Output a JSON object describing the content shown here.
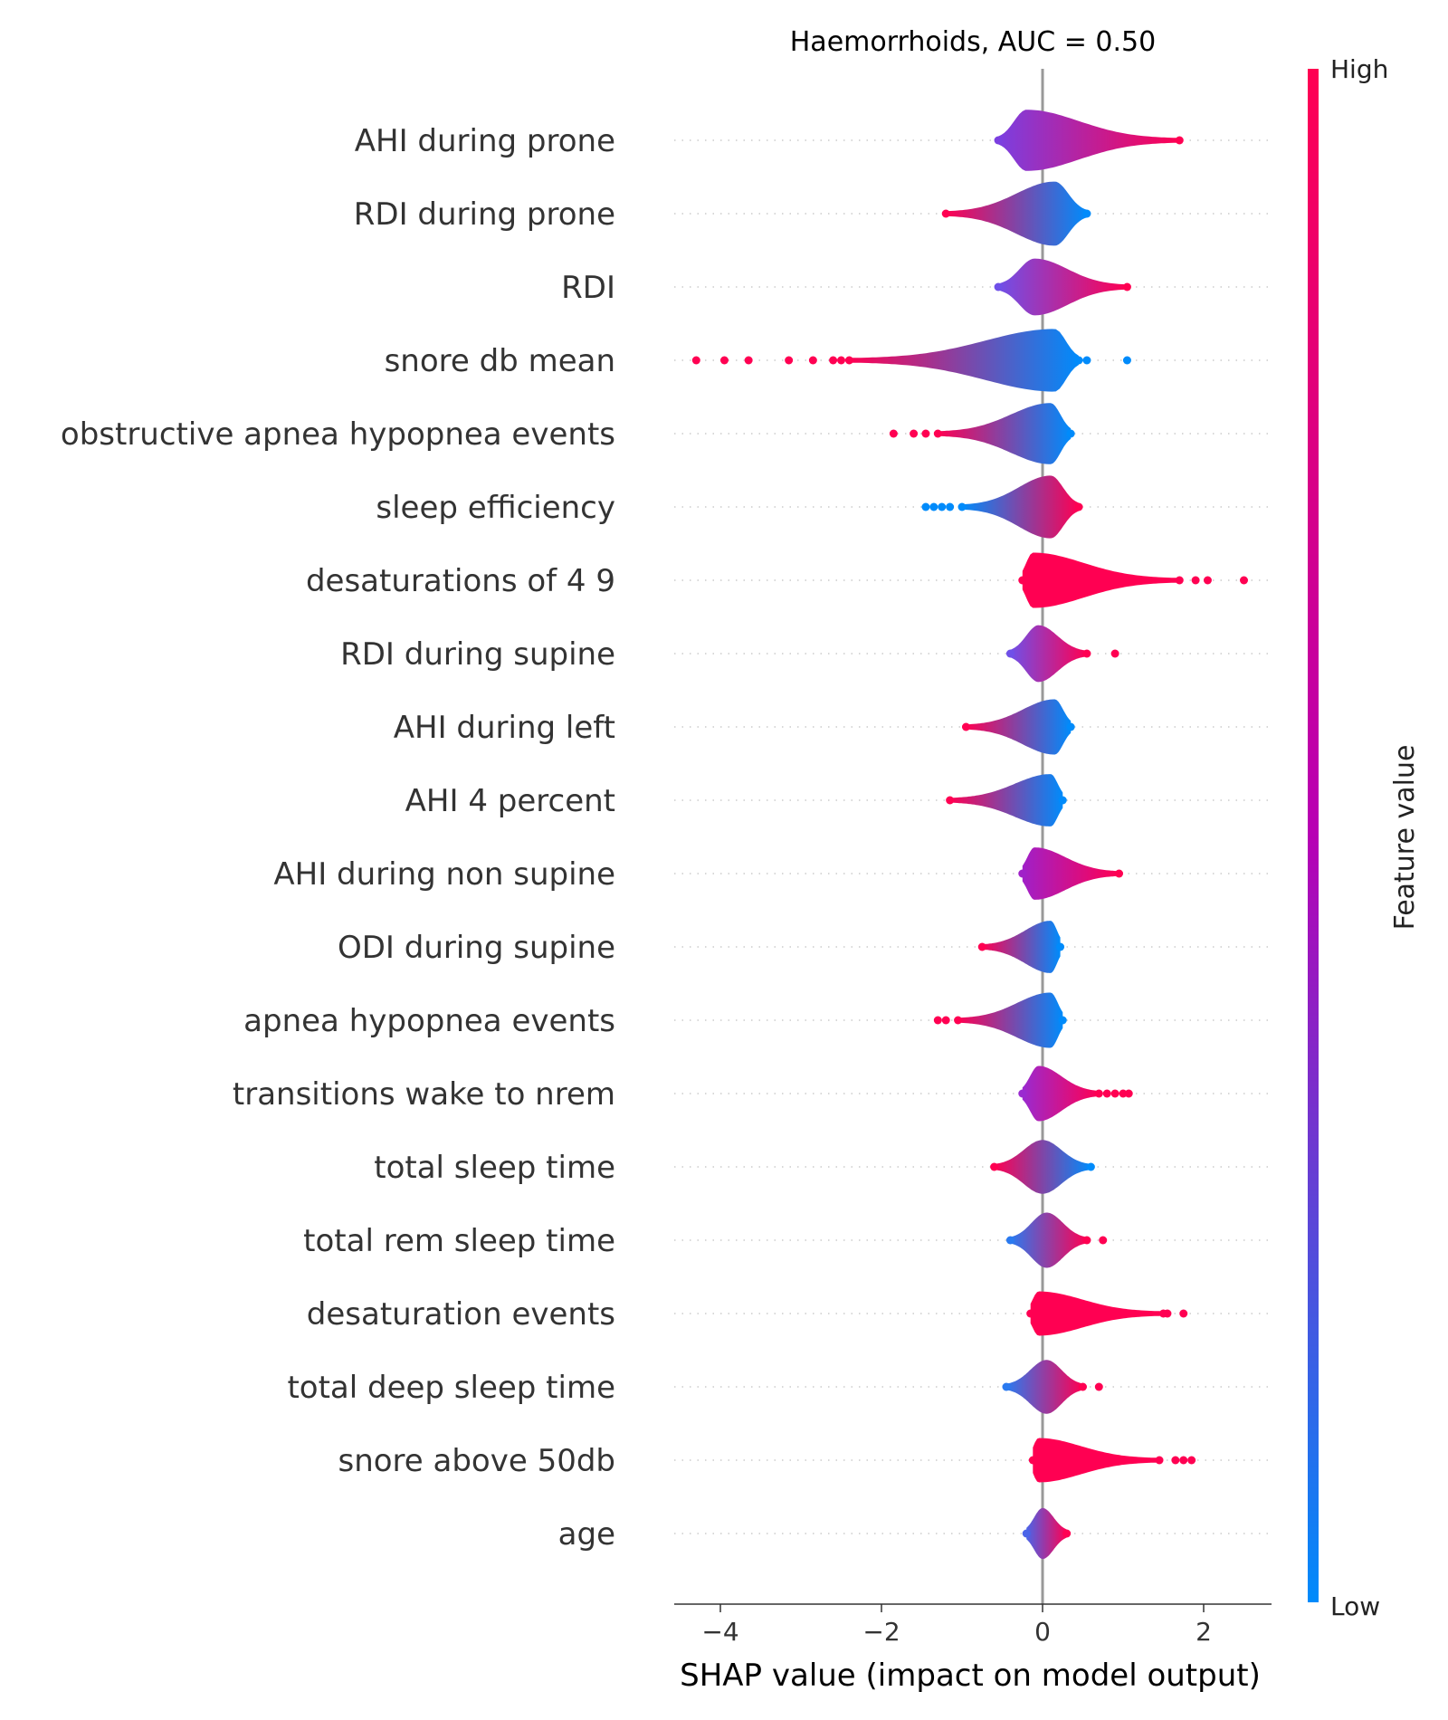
{
  "chart_data": {
    "type": "scatter",
    "subtype": "shap-violin-summary",
    "title": "Haemorrhoids, AUC =  0.50",
    "xlabel": "SHAP value (impact on model output)",
    "ylabel": "",
    "xlim": [
      -4.6,
      2.8
    ],
    "xticks": [
      -4,
      -2,
      0,
      2
    ],
    "xtick_labels": [
      "−4",
      "−2",
      "0",
      "2"
    ],
    "grid": "dotted rows",
    "colorbar": {
      "label": "Feature value",
      "high_label": "High",
      "low_label": "Low",
      "high_color": "#ff0052",
      "mid_color": "#b700b4",
      "low_color": "#008bfb"
    },
    "features": [
      {
        "name": "AHI during prone",
        "min": -0.55,
        "max": 1.7,
        "peak": -0.2,
        "width": 0.78,
        "left_color": "#7b3fe0",
        "right_color": "#ff0052",
        "outliers": []
      },
      {
        "name": "RDI during prone",
        "min": -1.2,
        "max": 0.55,
        "peak": 0.15,
        "width": 0.82,
        "left_color": "#ff0052",
        "right_color": "#008bfb",
        "outliers": []
      },
      {
        "name": "RDI",
        "min": -0.55,
        "max": 1.05,
        "peak": -0.1,
        "width": 0.72,
        "left_color": "#6f50e8",
        "right_color": "#ff0052",
        "outliers": []
      },
      {
        "name": "snore db mean",
        "min": -2.4,
        "max": 0.45,
        "peak": 0.15,
        "width": 0.8,
        "left_color": "#ff0052",
        "right_color": "#008bfb",
        "outliers": [
          -4.3,
          -3.95,
          -3.65,
          -3.15,
          -2.85,
          -2.6,
          -2.5,
          0.55,
          1.05
        ]
      },
      {
        "name": "obstructive apnea hypopnea events",
        "min": -1.3,
        "max": 0.35,
        "peak": 0.1,
        "width": 0.78,
        "left_color": "#ff0052",
        "right_color": "#008bfb",
        "outliers": [
          -1.85,
          -1.6,
          -1.45
        ]
      },
      {
        "name": "sleep efficiency",
        "min": -1.0,
        "max": 0.45,
        "peak": 0.1,
        "width": 0.8,
        "left_color": "#008bfb",
        "right_color": "#ff0052",
        "outliers": [
          -1.45,
          -1.35,
          -1.25,
          -1.15
        ]
      },
      {
        "name": "desaturations of 4 9",
        "min": -0.25,
        "max": 1.7,
        "peak": -0.12,
        "width": 0.7,
        "left_color": "#ff0052",
        "right_color": "#ff0052",
        "outliers": [
          1.9,
          2.05,
          2.5
        ]
      },
      {
        "name": "RDI during supine",
        "min": -0.4,
        "max": 0.55,
        "peak": -0.05,
        "width": 0.72,
        "left_color": "#6f50e8",
        "right_color": "#ff0052",
        "outliers": [
          0.9
        ]
      },
      {
        "name": "AHI during left",
        "min": -0.95,
        "max": 0.35,
        "peak": 0.15,
        "width": 0.7,
        "left_color": "#ff0052",
        "right_color": "#008bfb",
        "outliers": []
      },
      {
        "name": "AHI 4 percent",
        "min": -1.15,
        "max": 0.25,
        "peak": 0.1,
        "width": 0.66,
        "left_color": "#ff0052",
        "right_color": "#008bfb",
        "outliers": []
      },
      {
        "name": "AHI during non supine",
        "min": -0.25,
        "max": 0.95,
        "peak": -0.1,
        "width": 0.66,
        "left_color": "#a020c8",
        "right_color": "#ff0052",
        "outliers": []
      },
      {
        "name": "ODI during supine",
        "min": -0.75,
        "max": 0.22,
        "peak": 0.1,
        "width": 0.66,
        "left_color": "#ff0052",
        "right_color": "#008bfb",
        "outliers": []
      },
      {
        "name": "apnea hypopnea events",
        "min": -1.05,
        "max": 0.25,
        "peak": 0.1,
        "width": 0.7,
        "left_color": "#ff0052",
        "right_color": "#008bfb",
        "outliers": [
          -1.3,
          -1.2
        ]
      },
      {
        "name": "transitions wake to nrem",
        "min": -0.25,
        "max": 0.7,
        "peak": -0.05,
        "width": 0.7,
        "left_color": "#9a2ad0",
        "right_color": "#ff0052",
        "outliers": [
          0.8,
          0.9,
          1.0,
          1.07
        ]
      },
      {
        "name": "total sleep time",
        "min": -0.6,
        "max": 0.6,
        "peak": 0.0,
        "width": 0.68,
        "left_color": "#ff0052",
        "right_color": "#008bfb",
        "outliers": []
      },
      {
        "name": "total rem sleep time",
        "min": -0.4,
        "max": 0.55,
        "peak": 0.05,
        "width": 0.7,
        "left_color": "#2a7af0",
        "right_color": "#ff0052",
        "outliers": [
          0.75
        ]
      },
      {
        "name": "desaturation events",
        "min": -0.15,
        "max": 1.5,
        "peak": -0.05,
        "width": 0.55,
        "left_color": "#ff0052",
        "right_color": "#ff0052",
        "outliers": [
          1.55,
          1.75
        ]
      },
      {
        "name": "total deep sleep time",
        "min": -0.45,
        "max": 0.5,
        "peak": 0.05,
        "width": 0.68,
        "left_color": "#2a7af0",
        "right_color": "#ff0052",
        "outliers": [
          0.7
        ]
      },
      {
        "name": "snore above 50db",
        "min": -0.12,
        "max": 1.45,
        "peak": -0.05,
        "width": 0.55,
        "left_color": "#ff0052",
        "right_color": "#ff0052",
        "outliers": [
          1.65,
          1.75,
          1.85
        ]
      },
      {
        "name": "age",
        "min": -0.2,
        "max": 0.3,
        "peak": 0.0,
        "width": 0.64,
        "left_color": "#4a64e8",
        "right_color": "#ff0052",
        "outliers": []
      }
    ]
  }
}
